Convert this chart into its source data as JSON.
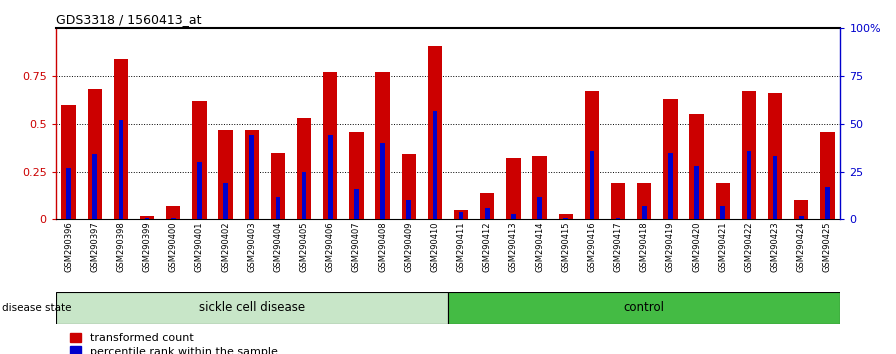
{
  "title": "GDS3318 / 1560413_at",
  "samples": [
    "GSM290396",
    "GSM290397",
    "GSM290398",
    "GSM290399",
    "GSM290400",
    "GSM290401",
    "GSM290402",
    "GSM290403",
    "GSM290404",
    "GSM290405",
    "GSM290406",
    "GSM290407",
    "GSM290408",
    "GSM290409",
    "GSM290410",
    "GSM290411",
    "GSM290412",
    "GSM290413",
    "GSM290414",
    "GSM290415",
    "GSM290416",
    "GSM290417",
    "GSM290418",
    "GSM290419",
    "GSM290420",
    "GSM290421",
    "GSM290422",
    "GSM290423",
    "GSM290424",
    "GSM290425"
  ],
  "transformed_count": [
    0.6,
    0.68,
    0.84,
    0.02,
    0.07,
    0.62,
    0.47,
    0.47,
    0.35,
    0.53,
    0.77,
    0.46,
    0.77,
    0.34,
    0.91,
    0.05,
    0.14,
    0.32,
    0.33,
    0.03,
    0.67,
    0.19,
    0.19,
    0.63,
    0.55,
    0.19,
    0.67,
    0.66,
    0.1,
    0.46
  ],
  "percentile_rank": [
    0.27,
    0.34,
    0.52,
    0.01,
    0.01,
    0.3,
    0.19,
    0.44,
    0.12,
    0.25,
    0.44,
    0.16,
    0.4,
    0.1,
    0.57,
    0.04,
    0.06,
    0.03,
    0.12,
    0.01,
    0.36,
    0.01,
    0.07,
    0.35,
    0.28,
    0.07,
    0.36,
    0.33,
    0.02,
    0.17
  ],
  "bar_color": "#cc0000",
  "percentile_color": "#0000cc",
  "sickle_count": 15,
  "sickle_color": "#c8e6c8",
  "control_color": "#44bb44",
  "label_bg_color": "#d8d8d8",
  "right_axis_color": "#0000cc",
  "left_axis_color": "#cc0000",
  "ylim": [
    0.0,
    1.0
  ],
  "yticks_left": [
    0,
    0.25,
    0.5,
    0.75
  ],
  "ytick_labels_left": [
    "0",
    "0.25",
    "0.5",
    "0.75"
  ],
  "yticks_right": [
    0,
    25,
    50,
    75,
    100
  ],
  "ytick_labels_right": [
    "0",
    "25",
    "50",
    "75",
    "100%"
  ]
}
